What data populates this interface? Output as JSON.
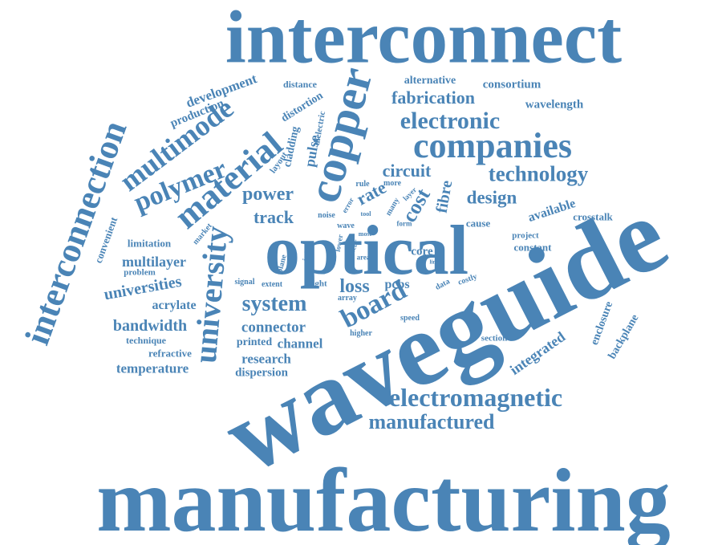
{
  "color": "#4a84b6",
  "words": [
    "interconnect",
    "manufacturing",
    "waveguide",
    "optical",
    "interconnection",
    "copper",
    "material",
    "multimode",
    "polymer",
    "university",
    "companies",
    "electronic",
    "technology",
    "board",
    "electromagnetic",
    "manufactured",
    "system",
    "fabrication",
    "development",
    "production",
    "alternative",
    "consortium",
    "wavelength",
    "distance",
    "distortion",
    "cladding",
    "pulse",
    "dielectric",
    "layout",
    "power",
    "circuit",
    "design",
    "available",
    "crosstalk",
    "fibre",
    "cost",
    "rate",
    "track",
    "loss",
    "pcbs",
    "universities",
    "acrylate",
    "multilayer",
    "limitation",
    "bandwidth",
    "connector",
    "channel",
    "research",
    "dispersion",
    "printed",
    "technique",
    "refractive",
    "temperature",
    "integrated",
    "backplane",
    "enclosure",
    "section",
    "core",
    "cause",
    "project",
    "constant",
    "rule",
    "more",
    "layer",
    "many",
    "error",
    "tool",
    "noise",
    "wave",
    "form",
    "area",
    "speed",
    "higher",
    "signal",
    "extent",
    "light",
    "array",
    "index",
    "plane",
    "lower",
    "most",
    "occur",
    "mas",
    "line",
    "data",
    "costly",
    "market",
    "convenient",
    "problem"
  ]
}
